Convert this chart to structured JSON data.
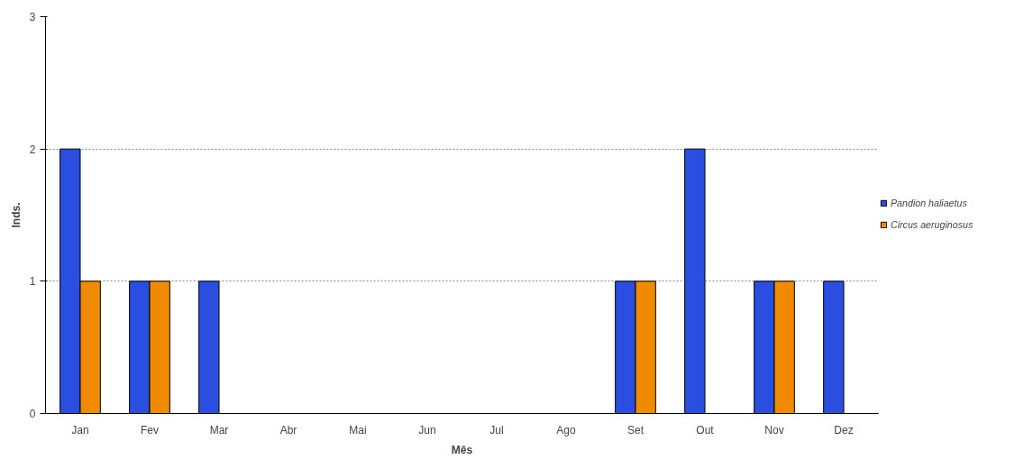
{
  "chart_data": {
    "type": "bar",
    "xlabel": "Mês",
    "ylabel": "Inds.",
    "categories": [
      "Jan",
      "Fev",
      "Mar",
      "Abr",
      "Mai",
      "Jun",
      "Jul",
      "Ago",
      "Set",
      "Out",
      "Nov",
      "Dez"
    ],
    "series": [
      {
        "name": "Pandion haliaetus",
        "color": "#2a4fe0",
        "values": [
          2,
          1,
          1,
          0,
          0,
          0,
          0,
          0,
          1,
          2,
          1,
          1
        ]
      },
      {
        "name": "Circus aeruginosus",
        "color": "#f08a00",
        "values": [
          1,
          1,
          0,
          0,
          0,
          0,
          0,
          0,
          1,
          0,
          1,
          0
        ]
      }
    ],
    "ylim": [
      0,
      3
    ],
    "yticks": [
      0,
      1,
      2,
      3
    ],
    "grid": "y",
    "legend": "right"
  }
}
